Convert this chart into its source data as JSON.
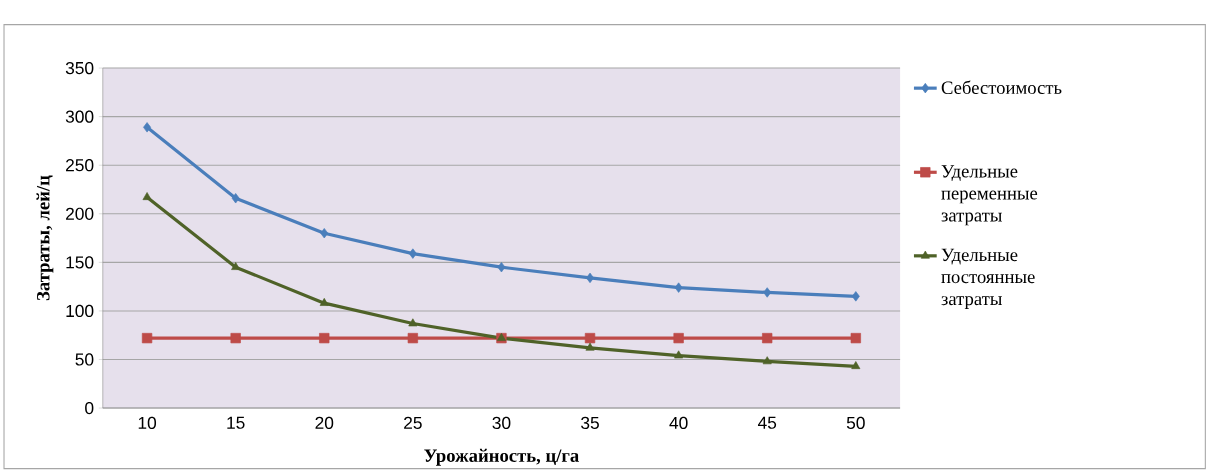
{
  "chart_data": {
    "type": "line",
    "xlabel": "Урожайность, ц/га",
    "ylabel": "Затраты,  лей/ц",
    "categories": [
      "10",
      "15",
      "20",
      "25",
      "30",
      "35",
      "40",
      "45",
      "50"
    ],
    "ylim": [
      0,
      350
    ],
    "yticks": [
      0,
      50,
      100,
      150,
      200,
      250,
      300,
      350
    ],
    "grid": "y",
    "legend": "right",
    "series": [
      {
        "name": "Себестоимость",
        "color": "#4a7ebb",
        "marker": "diamond",
        "values": [
          289,
          216,
          180,
          159,
          145,
          134,
          124,
          119,
          115
        ]
      },
      {
        "name": "Удельные переменные затраты",
        "color": "#be4b48",
        "marker": "square",
        "values": [
          72,
          72,
          72,
          72,
          72,
          72,
          72,
          72,
          72
        ]
      },
      {
        "name": "Удельные постоянные затраты",
        "color": "#4f6228",
        "marker": "triangle",
        "values": [
          217,
          145,
          108,
          87,
          72,
          62,
          54,
          48,
          43
        ]
      }
    ]
  }
}
